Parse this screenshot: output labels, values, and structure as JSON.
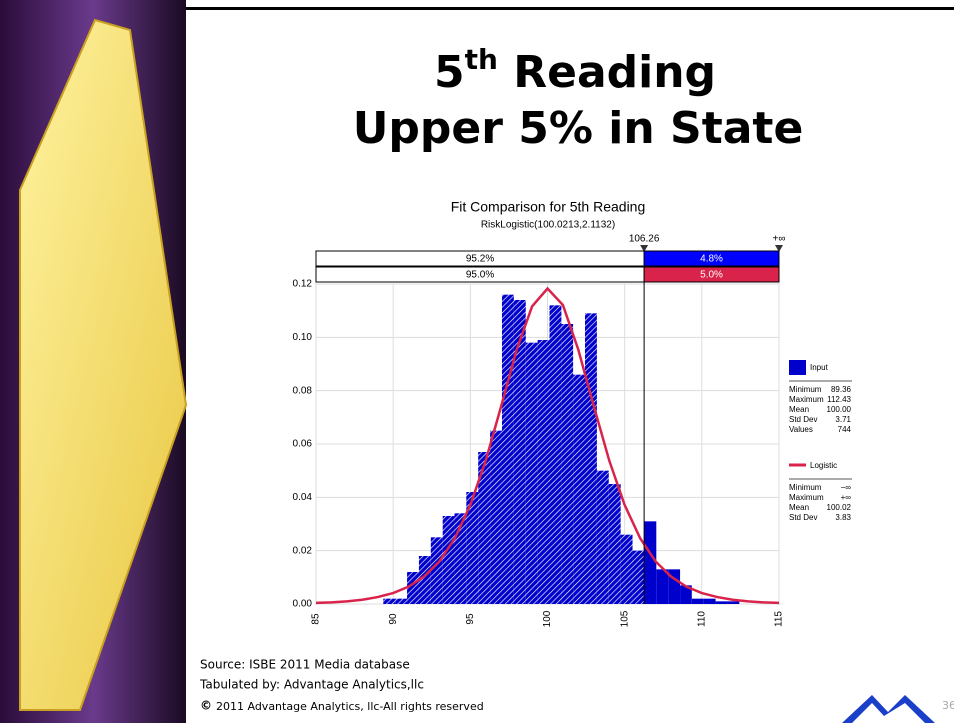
{
  "slide": {
    "title_number": "5",
    "title_sup": "th",
    "title_rest": " Reading",
    "title_line2": "Upper 5% in State",
    "source": "Source: ISBE 2011 Media database",
    "tabulated": "Tabulated by: Advantage Analytics,llc",
    "copyright_symbol": "©",
    "copyright": "2011 Advantage Analytics, llc-All rights reserved",
    "page_number": "36"
  },
  "chart_data": {
    "type": "histogram",
    "title": "Fit Comparison for 5th Reading",
    "subtitle": "RiskLogistic(100.0213,2.1132)",
    "bins": [
      89.36,
      90.13,
      90.9,
      91.67,
      92.44,
      93.21,
      93.97,
      94.74,
      95.51,
      96.28,
      97.05,
      97.82,
      98.59,
      99.36,
      100.13,
      100.9,
      101.66,
      102.43,
      103.2,
      103.97,
      104.74,
      105.51,
      106.28,
      107.05,
      107.82,
      108.59,
      109.35,
      110.12,
      110.89,
      111.66,
      112.43
    ],
    "series": [
      {
        "name": "Input",
        "color": "#0000cc",
        "values": [
          0.002,
          0.002,
          0.012,
          0.018,
          0.025,
          0.033,
          0.034,
          0.042,
          0.057,
          0.065,
          0.116,
          0.114,
          0.098,
          0.099,
          0.112,
          0.105,
          0.086,
          0.109,
          0.05,
          0.045,
          0.026,
          0.02,
          0.031,
          0.013,
          0.013,
          0.007,
          0.002,
          0.002,
          0.001,
          0.001
        ]
      },
      {
        "name": "Logistic",
        "color": "#d9234b",
        "x": [
          85,
          86,
          87,
          88,
          89,
          90,
          91,
          92,
          93,
          94,
          95,
          96,
          97,
          98,
          99,
          100,
          101,
          102,
          103,
          104,
          105,
          106,
          107,
          108,
          109,
          110,
          111,
          112,
          113,
          114,
          115
        ],
        "values": [
          0.0004,
          0.0006,
          0.001,
          0.0016,
          0.0026,
          0.0041,
          0.0065,
          0.0103,
          0.016,
          0.0247,
          0.0371,
          0.0538,
          0.0742,
          0.0953,
          0.1116,
          0.1183,
          0.1121,
          0.0953,
          0.0742,
          0.0538,
          0.0371,
          0.0247,
          0.016,
          0.0103,
          0.0065,
          0.0041,
          0.0026,
          0.0016,
          0.001,
          0.0006,
          0.0004
        ]
      }
    ],
    "stats": [
      [
        [
          "Minimum",
          "89.36"
        ],
        [
          "Maximum",
          "112.43"
        ],
        [
          "Mean",
          "100.00"
        ],
        [
          "Std Dev",
          "3.71"
        ],
        [
          "Values",
          "744"
        ]
      ],
      [
        [
          "Minimum",
          "−∞"
        ],
        [
          "Maximum",
          "+∞"
        ],
        [
          "Mean",
          "100.02"
        ],
        [
          "Std Dev",
          "3.83"
        ]
      ]
    ],
    "delimiter": 106.26,
    "delimiter_right_label": "+∞",
    "input_band": {
      "values": [
        95.2,
        4.8
      ],
      "value_labels": [
        "95.2%",
        "4.8%"
      ]
    },
    "fit_band": {
      "values": [
        95.0,
        5.0
      ],
      "value_labels": [
        "95.0%",
        "5.0%"
      ]
    },
    "xlim": [
      85,
      115
    ],
    "xticks": [
      85,
      90,
      95,
      100,
      105,
      110,
      115
    ],
    "ylim": [
      0,
      0.12
    ],
    "yticks": [
      {
        "value": 0,
        "label": "0.00"
      },
      {
        "value": 0.02,
        "label": "0.02"
      },
      {
        "value": 0.04,
        "label": "0.04"
      },
      {
        "value": 0.06,
        "label": "0.06"
      },
      {
        "value": 0.08,
        "label": "0.08"
      },
      {
        "value": 0.1,
        "label": "0.10"
      },
      {
        "value": 0.12,
        "label": "0.12"
      }
    ],
    "grid": true
  }
}
